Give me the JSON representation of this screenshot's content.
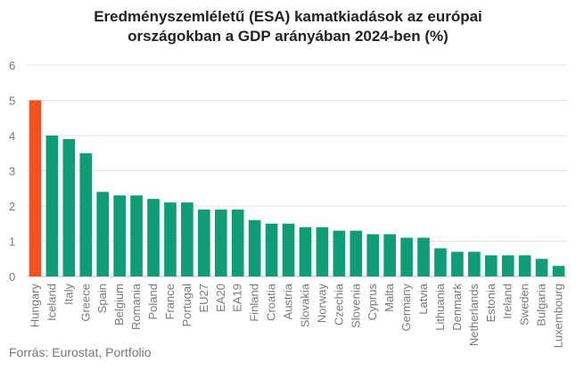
{
  "chart_data": {
    "type": "bar",
    "title_lines": [
      "Eredményszemléletű (ESA) kamatkiadások az európai",
      "országokban a GDP arányában 2024-ben (%)"
    ],
    "categories": [
      "Hungary",
      "Iceland",
      "Italy",
      "Greece",
      "Spain",
      "Belgium",
      "Romania",
      "Poland",
      "France",
      "Portugal",
      "EU27",
      "EA20",
      "EA19",
      "Finland",
      "Croatia",
      "Austria",
      "Slovakia",
      "Norway",
      "Czechia",
      "Slovenia",
      "Cyprus",
      "Malta",
      "Germany",
      "Latvia",
      "Lithuania",
      "Denmark",
      "Netherlands",
      "Estonia",
      "Ireland",
      "Sweden",
      "Bulgaria",
      "Luxembourg"
    ],
    "values": [
      5.0,
      4.0,
      3.9,
      3.5,
      2.4,
      2.3,
      2.3,
      2.2,
      2.1,
      2.1,
      1.9,
      1.9,
      1.9,
      1.6,
      1.5,
      1.5,
      1.4,
      1.4,
      1.3,
      1.3,
      1.2,
      1.2,
      1.1,
      1.1,
      0.8,
      0.7,
      0.7,
      0.6,
      0.6,
      0.6,
      0.5,
      0.3
    ],
    "highlight_index": 0,
    "ylim": [
      0,
      6
    ],
    "yticks": [
      0,
      1,
      2,
      3,
      4,
      5,
      6
    ],
    "xlabel": "",
    "ylabel": "",
    "grid": true,
    "colors": {
      "bar": "#0f9d77",
      "highlight": "#f4511e",
      "grid": "#e3e3e3",
      "axis": "#bdbdbd"
    }
  },
  "source": "Forrás: Eurostat, Portfolio"
}
